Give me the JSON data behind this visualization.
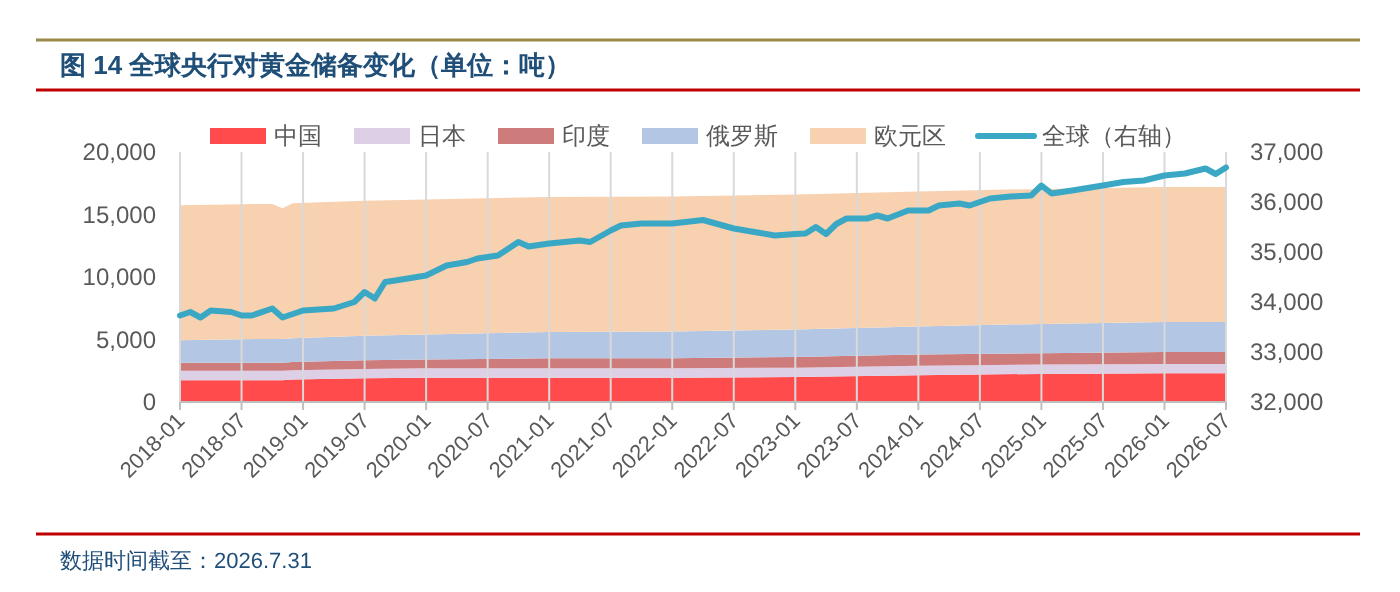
{
  "chart_data": {
    "type": "area",
    "title": "图 14  全球央行对黄金储备变化（单位：吨）",
    "annotations": [
      "数据时间截至：2026.7.31"
    ],
    "stacked": true,
    "legend": "top",
    "grid": "x",
    "x": [
      "2018-01",
      "2018-10",
      "2018-11",
      "2018-12",
      "2019-07",
      "2020-01",
      "2021-01",
      "2022-01",
      "2023-01",
      "2024-01",
      "2025-01",
      "2026-01",
      "2026-07"
    ],
    "xlim": [
      "2018-01",
      "2026-07"
    ],
    "xticks": [
      "2018-01",
      "2018-07",
      "2019-01",
      "2019-07",
      "2020-01",
      "2020-07",
      "2021-01",
      "2021-07",
      "2022-01",
      "2022-07",
      "2023-01",
      "2023-07",
      "2024-01",
      "2024-07",
      "2025-01",
      "2025-07",
      "2026-01",
      "2026-07"
    ],
    "ylim": [
      0,
      20000
    ],
    "yticks": [
      {
        "value": 0,
        "label": "0"
      },
      {
        "value": 5000,
        "label": "5,000"
      },
      {
        "value": 10000,
        "label": "10,000"
      },
      {
        "value": 15000,
        "label": "15,000"
      },
      {
        "value": 20000,
        "label": "20,000"
      }
    ],
    "y2lim": [
      32000,
      37000
    ],
    "y2ticks": [
      {
        "value": 32000,
        "label": "32,000"
      },
      {
        "value": 33000,
        "label": "33,000"
      },
      {
        "value": 34000,
        "label": "34,000"
      },
      {
        "value": 35000,
        "label": "35,000"
      },
      {
        "value": 36000,
        "label": "36,000"
      },
      {
        "value": 37000,
        "label": "37,000"
      }
    ],
    "series": [
      {
        "name": "中国",
        "color": "#ff4b4b",
        "values": [
          1750,
          1750,
          1750,
          1800,
          1900,
          1950,
          1950,
          1950,
          2000,
          2150,
          2250,
          2300,
          2300
        ]
      },
      {
        "name": "日本",
        "color": "#ddd0e6",
        "values": [
          750,
          750,
          750,
          750,
          750,
          750,
          750,
          750,
          750,
          750,
          750,
          750,
          750
        ]
      },
      {
        "name": "印度",
        "color": "#cd7b7b",
        "values": [
          650,
          650,
          650,
          650,
          700,
          700,
          800,
          800,
          850,
          900,
          900,
          950,
          950
        ]
      },
      {
        "name": "俄罗斯",
        "color": "#b3c6e4",
        "values": [
          1800,
          1900,
          1900,
          1900,
          1950,
          2000,
          2100,
          2150,
          2200,
          2250,
          2350,
          2400,
          2400
        ]
      },
      {
        "name": "欧元区",
        "color": "#f8d2b0",
        "values": [
          10800,
          10800,
          10450,
          10800,
          10800,
          10800,
          10800,
          10800,
          10800,
          10800,
          10800,
          10800,
          10800
        ]
      },
      {
        "name": "全球（右轴）",
        "type": "line",
        "axis": "y2",
        "color": "#3aa8c4",
        "x": [
          "2018-01",
          "2018-02",
          "2018-03",
          "2018-04",
          "2018-06",
          "2018-07",
          "2018-08",
          "2018-10",
          "2018-11",
          "2019-01",
          "2019-04",
          "2019-06",
          "2019-07",
          "2019-08",
          "2019-09",
          "2019-10",
          "2020-01",
          "2020-03",
          "2020-05",
          "2020-06",
          "2020-08",
          "2020-10",
          "2020-11",
          "2021-01",
          "2021-04",
          "2021-05",
          "2021-07",
          "2021-08",
          "2021-10",
          "2022-01",
          "2022-04",
          "2022-07",
          "2022-09",
          "2022-11",
          "2023-01",
          "2023-02",
          "2023-03",
          "2023-04",
          "2023-05",
          "2023-06",
          "2023-08",
          "2023-09",
          "2023-10",
          "2023-12",
          "2024-02",
          "2024-03",
          "2024-05",
          "2024-06",
          "2024-08",
          "2024-10",
          "2024-12",
          "2025-01",
          "2025-02",
          "2025-04",
          "2025-07",
          "2025-09",
          "2025-11",
          "2026-01",
          "2026-03",
          "2026-05",
          "2026-06",
          "2026-07"
        ],
        "values": [
          33730,
          33800,
          33690,
          33830,
          33800,
          33730,
          33730,
          33870,
          33690,
          33830,
          33870,
          34000,
          34200,
          34070,
          34400,
          34430,
          34530,
          34730,
          34800,
          34870,
          34930,
          35200,
          35110,
          35170,
          35230,
          35200,
          35430,
          35530,
          35570,
          35570,
          35640,
          35470,
          35400,
          35330,
          35360,
          35370,
          35500,
          35360,
          35560,
          35670,
          35670,
          35730,
          35670,
          35830,
          35830,
          35930,
          35970,
          35930,
          36070,
          36110,
          36130,
          36330,
          36170,
          36230,
          36330,
          36400,
          36430,
          36530,
          36570,
          36670,
          36560,
          36690
        ]
      }
    ]
  }
}
